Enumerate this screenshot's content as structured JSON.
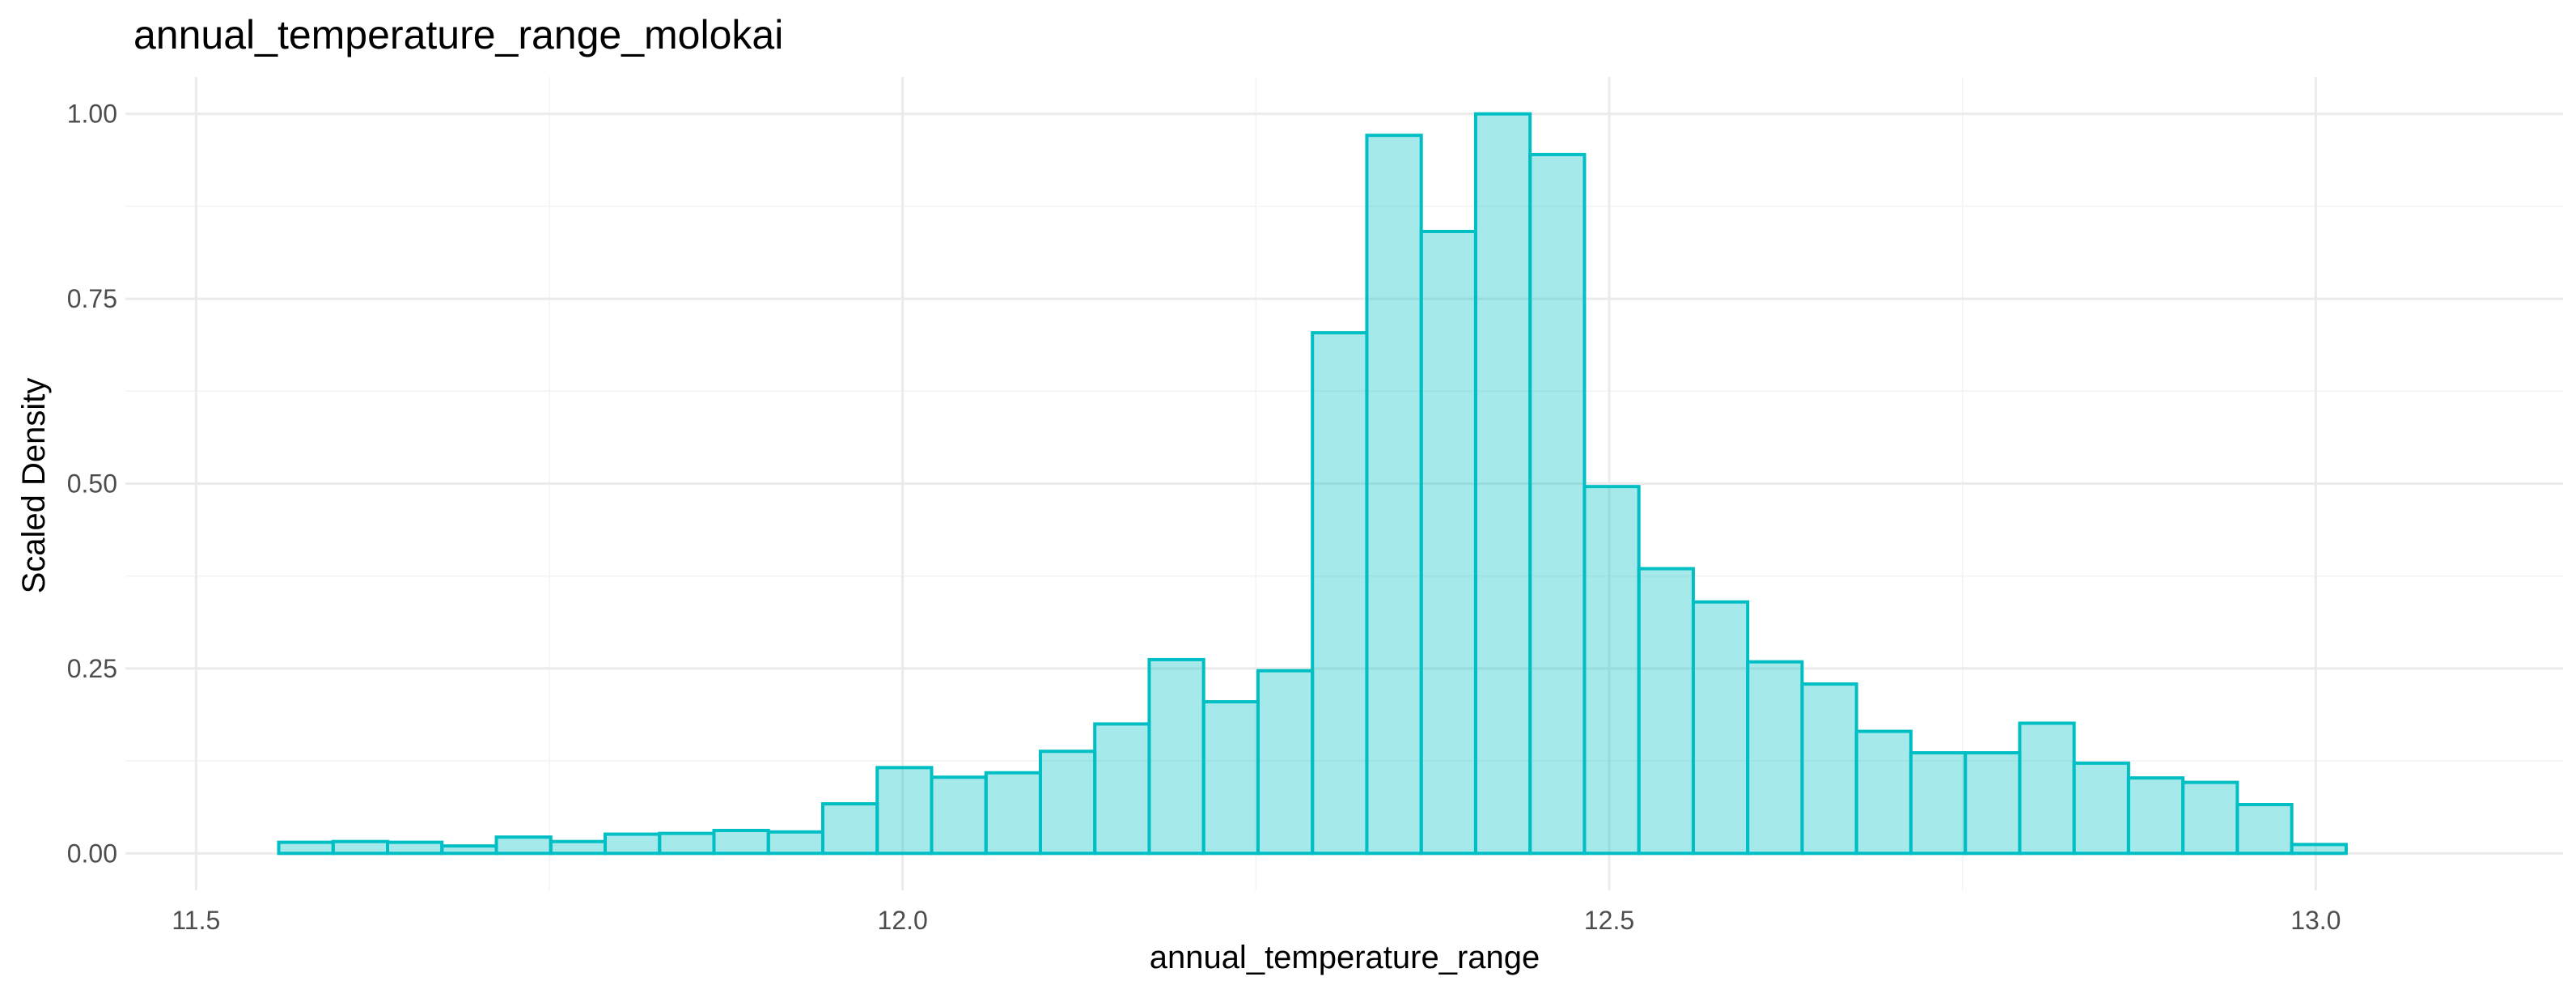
{
  "chart_data": {
    "type": "bar",
    "subtype": "histogram",
    "title": "annual_temperature_range_molokai",
    "xlabel": "annual_temperature_range",
    "ylabel": "Scaled Density",
    "xlim": [
      11.45,
      13.175
    ],
    "ylim": [
      -0.05,
      1.05
    ],
    "x_ticks": [
      11.5,
      12.0,
      12.5,
      13.0
    ],
    "x_tick_labels": [
      "11.5",
      "12.0",
      "12.5",
      "13.0"
    ],
    "y_ticks": [
      0.0,
      0.25,
      0.5,
      0.75,
      1.0
    ],
    "y_tick_labels": [
      "0.00",
      "0.25",
      "0.50",
      "0.75",
      "1.00"
    ],
    "grid": true,
    "legend": "none",
    "fill_color": "#00BFC4",
    "edge_color": "#00BFC4",
    "fill_opacity": 0.35,
    "bins": [
      {
        "x_start": 11.5585,
        "x_end": 11.597,
        "value": 0.015
      },
      {
        "x_start": 11.597,
        "x_end": 11.6355,
        "value": 0.016
      },
      {
        "x_start": 11.6355,
        "x_end": 11.674,
        "value": 0.015
      },
      {
        "x_start": 11.674,
        "x_end": 11.7125,
        "value": 0.01
      },
      {
        "x_start": 11.7125,
        "x_end": 11.751,
        "value": 0.022
      },
      {
        "x_start": 11.751,
        "x_end": 11.7895,
        "value": 0.016
      },
      {
        "x_start": 11.7895,
        "x_end": 11.828,
        "value": 0.026
      },
      {
        "x_start": 11.828,
        "x_end": 11.8665,
        "value": 0.027
      },
      {
        "x_start": 11.8665,
        "x_end": 11.905,
        "value": 0.031
      },
      {
        "x_start": 11.905,
        "x_end": 11.9435,
        "value": 0.029
      },
      {
        "x_start": 11.9435,
        "x_end": 11.982,
        "value": 0.067
      },
      {
        "x_start": 11.982,
        "x_end": 12.0205,
        "value": 0.116
      },
      {
        "x_start": 12.0205,
        "x_end": 12.059,
        "value": 0.103
      },
      {
        "x_start": 12.059,
        "x_end": 12.0975,
        "value": 0.109
      },
      {
        "x_start": 12.0975,
        "x_end": 12.136,
        "value": 0.138
      },
      {
        "x_start": 12.136,
        "x_end": 12.1745,
        "value": 0.175
      },
      {
        "x_start": 12.1745,
        "x_end": 12.213,
        "value": 0.262
      },
      {
        "x_start": 12.213,
        "x_end": 12.2515,
        "value": 0.205
      },
      {
        "x_start": 12.2515,
        "x_end": 12.29,
        "value": 0.247
      },
      {
        "x_start": 12.29,
        "x_end": 12.3285,
        "value": 0.704
      },
      {
        "x_start": 12.3285,
        "x_end": 12.367,
        "value": 0.971
      },
      {
        "x_start": 12.367,
        "x_end": 12.4055,
        "value": 0.841
      },
      {
        "x_start": 12.4055,
        "x_end": 12.444,
        "value": 1.0
      },
      {
        "x_start": 12.444,
        "x_end": 12.4825,
        "value": 0.945
      },
      {
        "x_start": 12.4825,
        "x_end": 12.521,
        "value": 0.496
      },
      {
        "x_start": 12.521,
        "x_end": 12.5595,
        "value": 0.385
      },
      {
        "x_start": 12.5595,
        "x_end": 12.598,
        "value": 0.34
      },
      {
        "x_start": 12.598,
        "x_end": 12.6365,
        "value": 0.259
      },
      {
        "x_start": 12.6365,
        "x_end": 12.675,
        "value": 0.229
      },
      {
        "x_start": 12.675,
        "x_end": 12.7135,
        "value": 0.165
      },
      {
        "x_start": 12.7135,
        "x_end": 12.752,
        "value": 0.136
      },
      {
        "x_start": 12.752,
        "x_end": 12.7905,
        "value": 0.136
      },
      {
        "x_start": 12.7905,
        "x_end": 12.829,
        "value": 0.176
      },
      {
        "x_start": 12.829,
        "x_end": 12.8675,
        "value": 0.122
      },
      {
        "x_start": 12.8675,
        "x_end": 12.906,
        "value": 0.102
      },
      {
        "x_start": 12.906,
        "x_end": 12.9445,
        "value": 0.096
      },
      {
        "x_start": 12.9445,
        "x_end": 12.983,
        "value": 0.066
      },
      {
        "x_start": 12.983,
        "x_end": 13.0215,
        "value": 0.012
      }
    ]
  }
}
